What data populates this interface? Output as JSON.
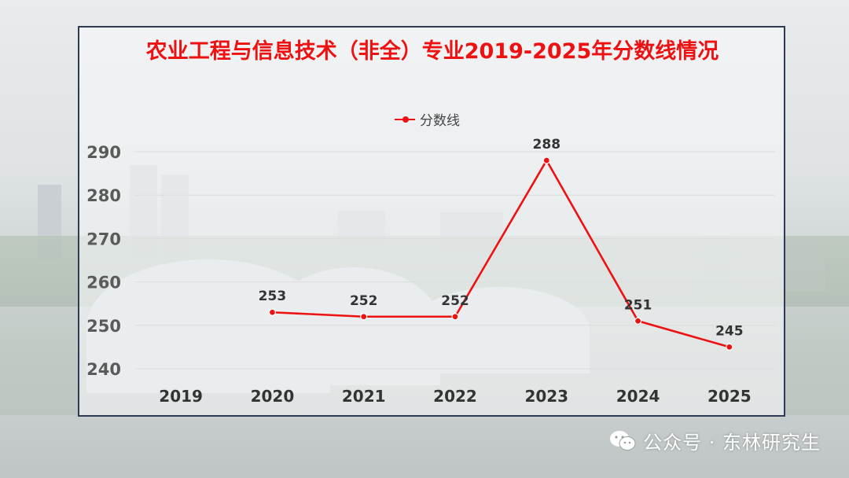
{
  "chart_data": {
    "type": "line",
    "title": "农业工程与信息技术（非全）专业2019-2025年分数线情况",
    "categories": [
      "2019",
      "2020",
      "2021",
      "2022",
      "2023",
      "2024",
      "2025"
    ],
    "series": [
      {
        "name": "分数线",
        "values": [
          null,
          253,
          252,
          252,
          288,
          251,
          245
        ],
        "color": "#ee1111"
      }
    ],
    "data_labels": [
      "",
      "253",
      "252",
      "252",
      "288",
      "251",
      "245"
    ],
    "yticks": [
      "240",
      "250",
      "260",
      "270",
      "280",
      "290"
    ],
    "ylim": [
      240,
      290
    ],
    "grid": true,
    "legend": "top-center"
  },
  "watermark": {
    "text": "公众号 · 东林研究生",
    "icon": "wechat-icon"
  }
}
